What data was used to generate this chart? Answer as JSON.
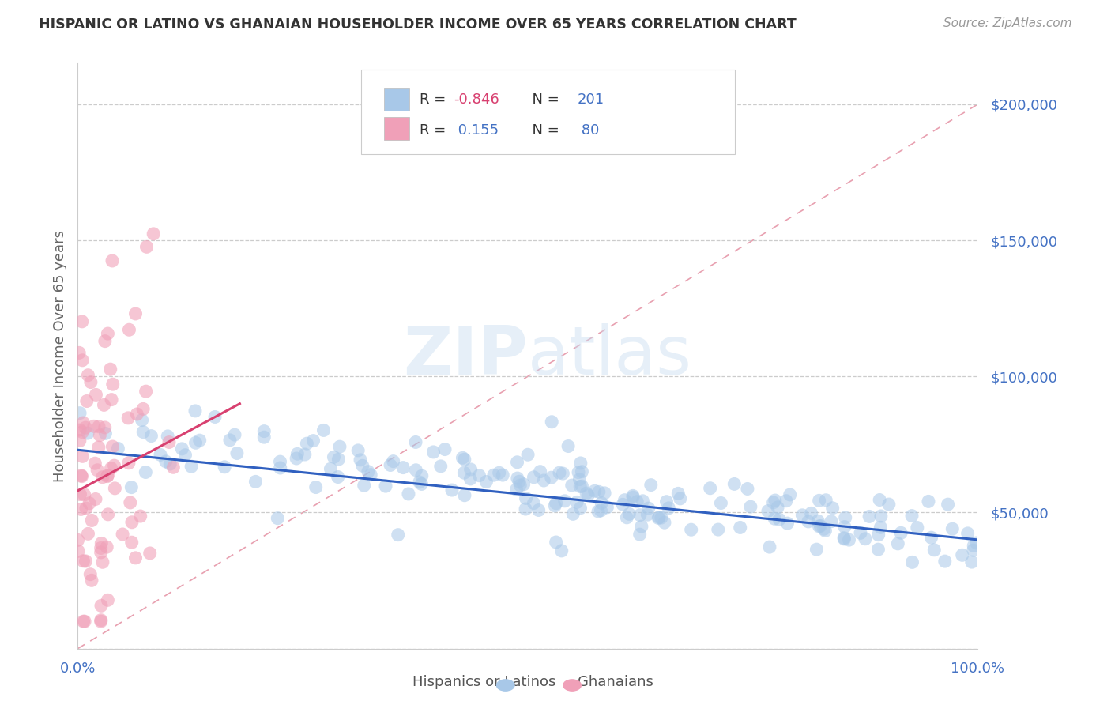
{
  "title": "HISPANIC OR LATINO VS GHANAIAN HOUSEHOLDER INCOME OVER 65 YEARS CORRELATION CHART",
  "source": "Source: ZipAtlas.com",
  "ylabel": "Householder Income Over 65 years",
  "xlim": [
    0.0,
    1.0
  ],
  "ylim": [
    0,
    215000
  ],
  "yticks": [
    0,
    50000,
    100000,
    150000,
    200000
  ],
  "ytick_labels": [
    "",
    "$50,000",
    "$100,000",
    "$150,000",
    "$200,000"
  ],
  "watermark_zip": "ZIP",
  "watermark_atlas": "atlas",
  "scatter_blue_color": "#a8c8e8",
  "scatter_pink_color": "#f0a0b8",
  "trend_blue_color": "#3060c0",
  "trend_pink_color": "#d84070",
  "diagonal_color": "#e8a0b0",
  "blue_R": -0.846,
  "blue_N": 201,
  "pink_R": 0.155,
  "pink_N": 80,
  "background_color": "#ffffff",
  "grid_color": "#cccccc",
  "title_color": "#333333",
  "tick_label_color": "#4472c4",
  "ylabel_color": "#666666",
  "blue_trend_x0": 0.0,
  "blue_trend_y0": 73000,
  "blue_trend_x1": 1.0,
  "blue_trend_y1": 40000,
  "pink_trend_x0": 0.0,
  "pink_trend_y0": 58000,
  "pink_trend_x1": 0.18,
  "pink_trend_y1": 90000,
  "legend_R_color": "#e05070",
  "legend_N_color": "#4472c4",
  "legend_blue_R_text": "R = -0.846",
  "legend_blue_N_text": "N = 201",
  "legend_pink_R_text": "R =  0.155",
  "legend_pink_N_text": "N =  80"
}
